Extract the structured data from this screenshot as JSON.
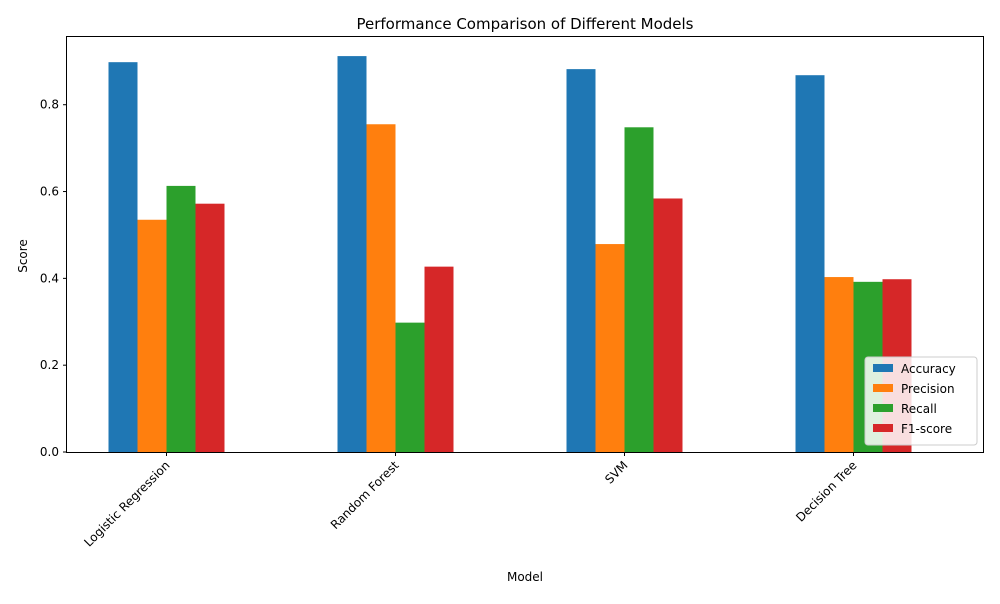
{
  "chart_data": {
    "type": "bar",
    "title": "Performance Comparison of Different Models",
    "xlabel": "Model",
    "ylabel": "Score",
    "categories": [
      "Logistic Regression",
      "Random Forest",
      "SVM",
      "Decision Tree"
    ],
    "series": [
      {
        "name": "Accuracy",
        "color": "#1f77b4",
        "values": [
          0.898,
          0.912,
          0.882,
          0.868
        ]
      },
      {
        "name": "Precision",
        "color": "#ff7f0e",
        "values": [
          0.535,
          0.755,
          0.479,
          0.403
        ]
      },
      {
        "name": "Recall",
        "color": "#2ca02c",
        "values": [
          0.613,
          0.298,
          0.748,
          0.392
        ]
      },
      {
        "name": "F1-score",
        "color": "#d62728",
        "values": [
          0.572,
          0.427,
          0.584,
          0.398
        ]
      }
    ],
    "ylim": [
      0,
      0.956
    ],
    "yticks": [
      "0.0",
      "0.2",
      "0.4",
      "0.6",
      "0.8"
    ],
    "grid": false,
    "legend_position": "lower-right"
  }
}
